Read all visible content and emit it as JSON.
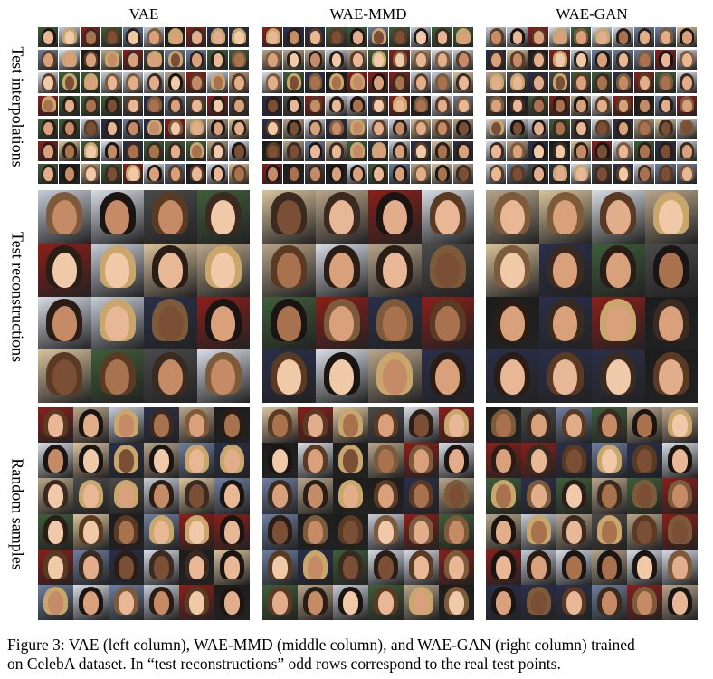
{
  "columns": [
    "VAE",
    "WAE-MMD",
    "WAE-GAN"
  ],
  "row_labels": [
    "Test interpolations",
    "Test reconstructions",
    "Random samples"
  ],
  "caption": {
    "line1": "Figure 3: VAE (left column), WAE-MMD (middle column), and WAE-GAN (right column) trained",
    "line2": "on CelebA dataset. In “test reconstructions” odd rows correspond to the real test points."
  },
  "colors": {
    "skin": [
      "#e8b796",
      "#d9a07c",
      "#c58b67",
      "#f0c9a8",
      "#a9724f",
      "#7a4f35",
      "#e2ad8a"
    ],
    "hair": [
      "#2a1d16",
      "#5b3a24",
      "#c9a66b",
      "#1a1412",
      "#7d5a3a",
      "#3b2a20"
    ],
    "bg": [
      "#8a1f1a",
      "#2a2f4a",
      "#c7ccd8",
      "#d9c39c",
      "#3e5e3a",
      "#1c1c1c",
      "#6e7fa0",
      "#b8a58a",
      "#4a4a4a",
      "#d8dde6"
    ]
  }
}
